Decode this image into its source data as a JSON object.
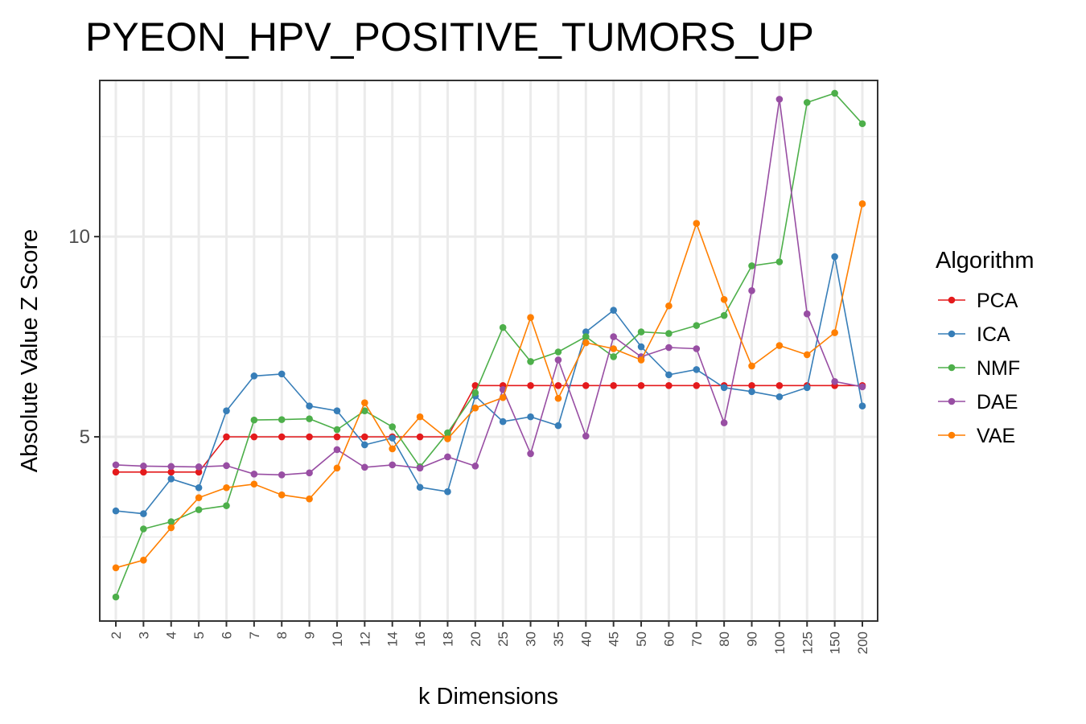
{
  "chart_data": {
    "type": "line",
    "title": "PYEON_HPV_POSITIVE_TUMORS_UP",
    "xlabel": "k Dimensions",
    "ylabel": "Absolute Value Z Score",
    "categories": [
      "2",
      "3",
      "4",
      "5",
      "6",
      "7",
      "8",
      "9",
      "10",
      "12",
      "14",
      "16",
      "18",
      "20",
      "25",
      "30",
      "35",
      "40",
      "45",
      "50",
      "60",
      "70",
      "80",
      "90",
      "100",
      "125",
      "150",
      "200"
    ],
    "yticks": [
      5,
      10
    ],
    "ylim": [
      0.4,
      13.9
    ],
    "grid": true,
    "legend": {
      "title": "Algorithm",
      "position": "right"
    },
    "series": [
      {
        "name": "PCA",
        "color": "#e41a1c",
        "values": [
          4.12,
          4.12,
          4.12,
          4.12,
          5.0,
          5.0,
          5.0,
          5.0,
          5.0,
          5.0,
          5.0,
          5.0,
          5.0,
          6.28,
          6.28,
          6.28,
          6.28,
          6.28,
          6.28,
          6.28,
          6.28,
          6.28,
          6.28,
          6.28,
          6.28,
          6.28,
          6.28,
          6.28
        ]
      },
      {
        "name": "ICA",
        "color": "#377eb8",
        "values": [
          3.15,
          3.08,
          3.95,
          3.73,
          5.65,
          6.52,
          6.57,
          5.77,
          5.65,
          4.8,
          4.97,
          3.74,
          3.63,
          6.02,
          5.38,
          5.5,
          5.28,
          7.62,
          8.16,
          7.25,
          6.55,
          6.68,
          6.23,
          6.13,
          6.0,
          6.23,
          9.5,
          5.77
        ]
      },
      {
        "name": "NMF",
        "color": "#4daf4a",
        "values": [
          1.0,
          2.7,
          2.88,
          3.18,
          3.28,
          5.42,
          5.43,
          5.45,
          5.18,
          5.65,
          5.25,
          4.25,
          5.1,
          6.1,
          7.73,
          6.88,
          7.12,
          7.5,
          7.0,
          7.62,
          7.58,
          7.78,
          8.03,
          9.27,
          9.37,
          13.35,
          13.58,
          12.82
        ]
      },
      {
        "name": "DAE",
        "color": "#984ea3",
        "values": [
          4.3,
          4.27,
          4.26,
          4.25,
          4.28,
          4.07,
          4.05,
          4.1,
          4.68,
          4.24,
          4.3,
          4.22,
          4.5,
          4.27,
          6.18,
          4.58,
          6.92,
          5.02,
          7.5,
          7.0,
          7.23,
          7.2,
          5.35,
          8.65,
          13.43,
          8.07,
          6.38,
          6.25
        ]
      },
      {
        "name": "VAE",
        "color": "#ff7f00",
        "values": [
          1.73,
          1.92,
          2.73,
          3.48,
          3.73,
          3.82,
          3.55,
          3.45,
          4.22,
          5.85,
          4.7,
          5.5,
          4.95,
          5.72,
          5.98,
          7.98,
          5.96,
          7.35,
          7.2,
          6.92,
          8.27,
          10.33,
          8.43,
          6.77,
          7.28,
          7.05,
          7.6,
          10.82
        ]
      }
    ]
  }
}
